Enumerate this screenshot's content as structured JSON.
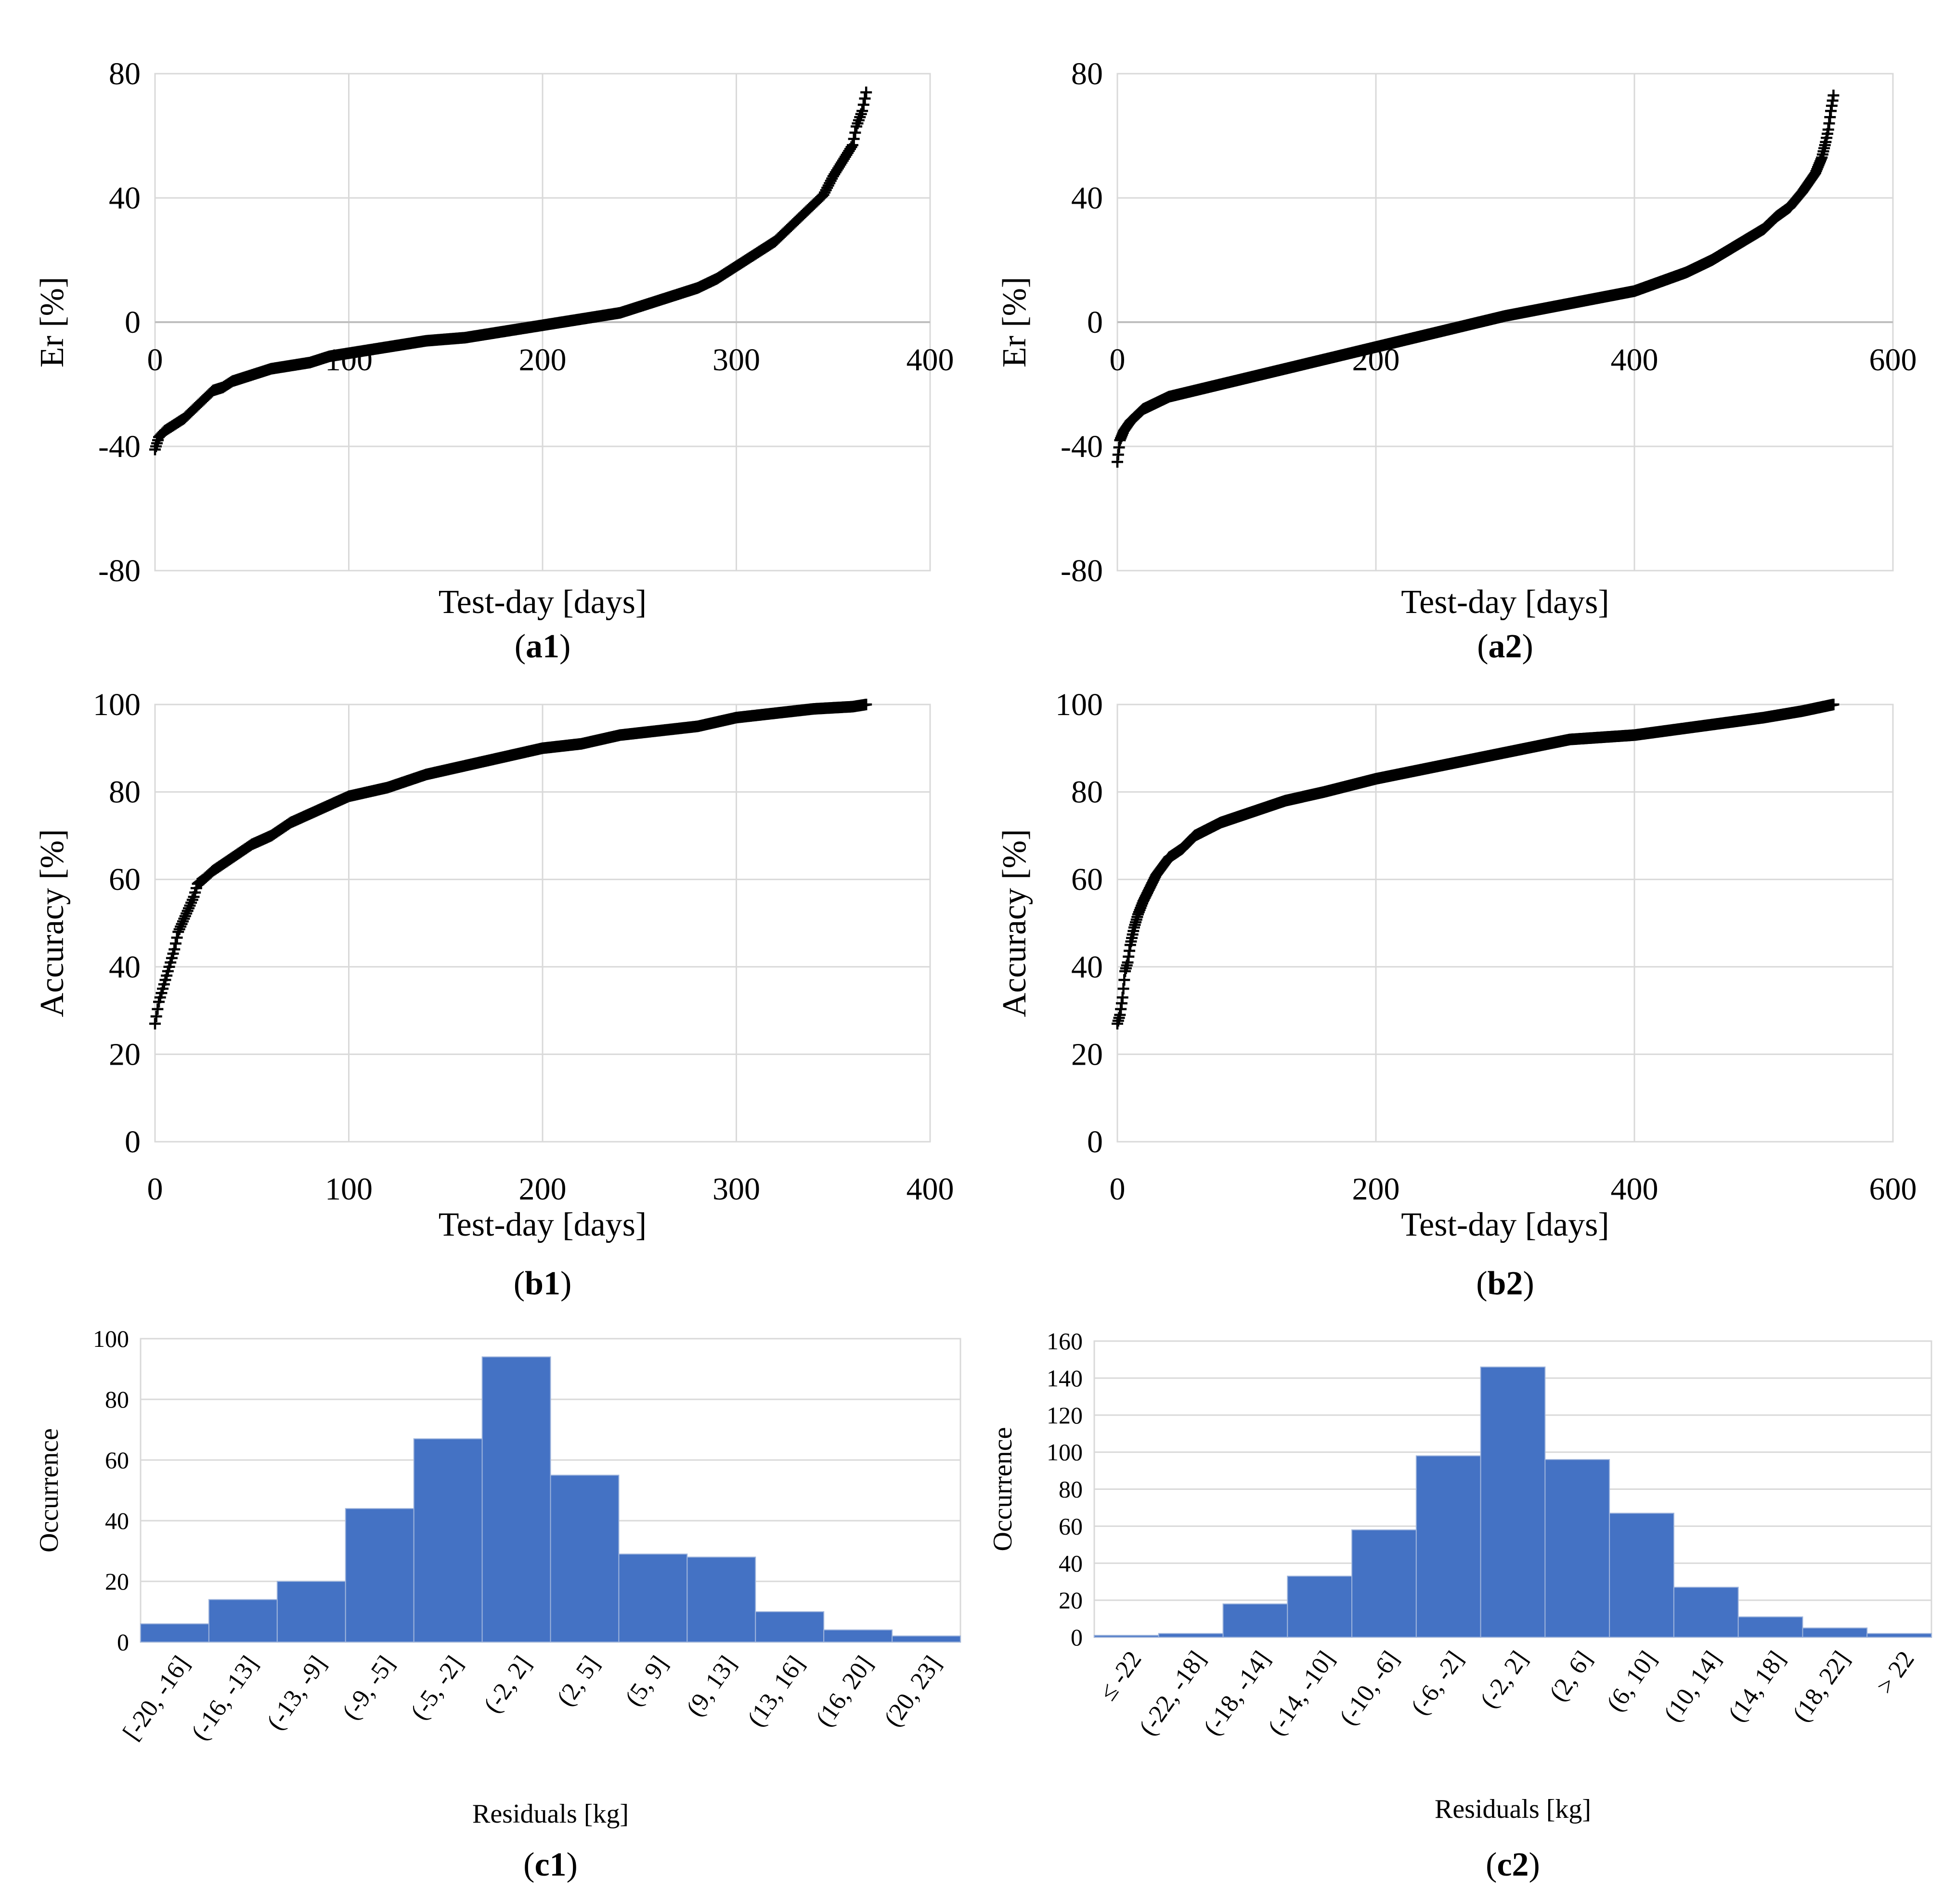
{
  "chart_data": [
    {
      "id": "a1",
      "type": "scatter",
      "panel_label": "(a1)",
      "title": "",
      "xlabel": "Test-day [days]",
      "ylabel": "Er  [%]",
      "xlim": [
        0,
        400
      ],
      "ylim": [
        -80,
        80
      ],
      "xticks": [
        0,
        100,
        200,
        300,
        400
      ],
      "yticks": [
        -80,
        -40,
        0,
        40,
        80
      ],
      "marker": "plus",
      "grid": true,
      "color": "#000000",
      "x": [
        0,
        1,
        2,
        5,
        10,
        15,
        20,
        25,
        30,
        35,
        40,
        50,
        60,
        70,
        80,
        90,
        100,
        120,
        140,
        160,
        180,
        200,
        220,
        240,
        250,
        260,
        270,
        280,
        290,
        300,
        310,
        320,
        330,
        340,
        345,
        350,
        355,
        360,
        362,
        365,
        367
      ],
      "y": [
        -41,
        -39,
        -37,
        -35,
        -33,
        -31,
        -28,
        -25,
        -22,
        -21,
        -19,
        -17,
        -15,
        -14,
        -13,
        -11,
        -10,
        -8,
        -6,
        -5,
        -3,
        -1,
        1,
        3,
        5,
        7,
        9,
        11,
        14,
        18,
        22,
        26,
        32,
        38,
        41,
        47,
        52,
        57,
        63,
        68,
        74
      ]
    },
    {
      "id": "a2",
      "type": "scatter",
      "panel_label": "(a2)",
      "title": "",
      "xlabel": "Test-day [days]",
      "ylabel": "Er  [%]",
      "xlim": [
        0,
        600
      ],
      "ylim": [
        -80,
        80
      ],
      "xticks": [
        0,
        200,
        400,
        600
      ],
      "yticks": [
        -80,
        -40,
        0,
        40,
        80
      ],
      "marker": "plus",
      "grid": true,
      "color": "#000000",
      "x": [
        0,
        2,
        5,
        10,
        15,
        20,
        30,
        40,
        60,
        80,
        100,
        150,
        200,
        250,
        300,
        350,
        400,
        420,
        440,
        460,
        480,
        500,
        510,
        520,
        530,
        540,
        545,
        548,
        550,
        552,
        554
      ],
      "y": [
        -45,
        -38,
        -35,
        -32,
        -30,
        -28,
        -26,
        -24,
        -22,
        -20,
        -18,
        -13,
        -8,
        -3,
        2,
        6,
        10,
        13,
        16,
        20,
        25,
        30,
        34,
        37,
        42,
        48,
        53,
        58,
        62,
        68,
        73
      ]
    },
    {
      "id": "b1",
      "type": "scatter",
      "panel_label": "(b1)",
      "title": "",
      "xlabel": "Test-day [days]",
      "ylabel": "Accuracy [%]",
      "xlim": [
        0,
        400
      ],
      "ylim": [
        0,
        100
      ],
      "xticks": [
        0,
        100,
        200,
        300,
        400
      ],
      "yticks": [
        0,
        20,
        40,
        60,
        80,
        100
      ],
      "marker": "plus",
      "grid": true,
      "color": "#000000",
      "x": [
        0,
        2,
        4,
        6,
        8,
        10,
        12,
        15,
        18,
        20,
        22,
        25,
        30,
        40,
        50,
        60,
        70,
        80,
        90,
        100,
        120,
        140,
        160,
        180,
        200,
        220,
        240,
        260,
        280,
        300,
        320,
        340,
        360,
        367
      ],
      "y": [
        27,
        32,
        35,
        38,
        41,
        44,
        48,
        51,
        54,
        56,
        59,
        60,
        62,
        65,
        68,
        70,
        73,
        75,
        77,
        79,
        81,
        84,
        86,
        88,
        90,
        91,
        93,
        94,
        95,
        97,
        98,
        99,
        99.5,
        100
      ]
    },
    {
      "id": "b2",
      "type": "scatter",
      "panel_label": "(b2)",
      "title": "",
      "xlabel": "Test-day [days]",
      "ylabel": "Accuracy [%]",
      "xlim": [
        0,
        600
      ],
      "ylim": [
        0,
        100
      ],
      "xticks": [
        0,
        200,
        400,
        600
      ],
      "yticks": [
        0,
        20,
        40,
        60,
        80,
        100
      ],
      "marker": "plus",
      "grid": true,
      "color": "#000000",
      "x": [
        0,
        2,
        4,
        6,
        8,
        10,
        13,
        16,
        20,
        25,
        30,
        40,
        50,
        60,
        80,
        100,
        130,
        160,
        200,
        250,
        300,
        350,
        400,
        450,
        500,
        530,
        554
      ],
      "y": [
        27,
        29,
        33,
        39,
        41,
        45,
        49,
        52,
        55,
        58,
        61,
        65,
        67,
        70,
        73,
        75,
        78,
        80,
        83,
        86,
        89,
        92,
        93,
        95,
        97,
        98.5,
        100
      ]
    },
    {
      "id": "c1",
      "type": "bar",
      "panel_label": "(c1)",
      "title": "",
      "xlabel": "Residuals [kg]",
      "ylabel": "Occurrence",
      "ylim": [
        0,
        100
      ],
      "yticks": [
        0,
        20,
        40,
        60,
        80,
        100
      ],
      "grid": true,
      "color": "#4472c4",
      "categories": [
        "[-20, -16]",
        "(-16, -13]",
        "(-13, -9]",
        "(-9, -5]",
        "(-5, -2]",
        "(-2, 2]",
        "(2, 5]",
        "(5, 9]",
        "(9, 13]",
        "(13, 16]",
        "(16, 20]",
        "(20, 23]"
      ],
      "values": [
        6,
        14,
        20,
        44,
        67,
        94,
        55,
        29,
        28,
        10,
        4,
        2
      ]
    },
    {
      "id": "c2",
      "type": "bar",
      "panel_label": "(c2)",
      "title": "",
      "xlabel": "Residuals [kg]",
      "ylabel": "Occurrence",
      "ylim": [
        0,
        160
      ],
      "yticks": [
        0,
        20,
        40,
        60,
        80,
        100,
        120,
        140,
        160
      ],
      "grid": true,
      "color": "#4472c4",
      "categories": [
        "≤ -22",
        "(-22, -18]",
        "(-18, -14]",
        "(-14, -10]",
        "(-10, -6]",
        "(-6, -2]",
        "(-2, 2]",
        "(2, 6]",
        "(6, 10]",
        "(10, 14]",
        "(14, 18]",
        "(18, 22]",
        "> 22"
      ],
      "values": [
        1,
        2,
        18,
        33,
        58,
        98,
        146,
        96,
        67,
        27,
        11,
        5,
        2
      ]
    }
  ]
}
